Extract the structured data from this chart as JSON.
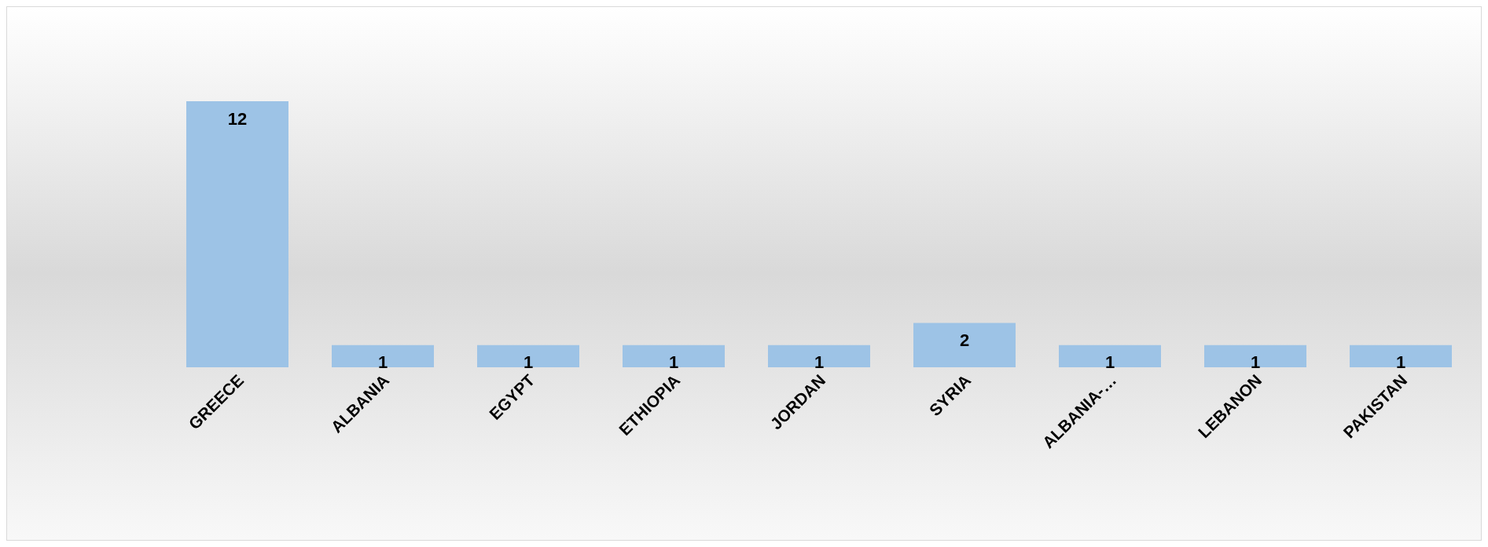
{
  "chart_data": {
    "type": "bar",
    "categories": [
      "GREECE",
      "ALBANIA",
      "EGYPT",
      "ETHIOPIA",
      "JORDAN",
      "SYRIA",
      "ALBANIA-…",
      "LEBANON",
      "PAKISTAN"
    ],
    "values": [
      12,
      1,
      1,
      1,
      1,
      2,
      1,
      1,
      1
    ],
    "color": "#9dc3e6",
    "data_labels": true,
    "grid": false,
    "legend": false
  }
}
